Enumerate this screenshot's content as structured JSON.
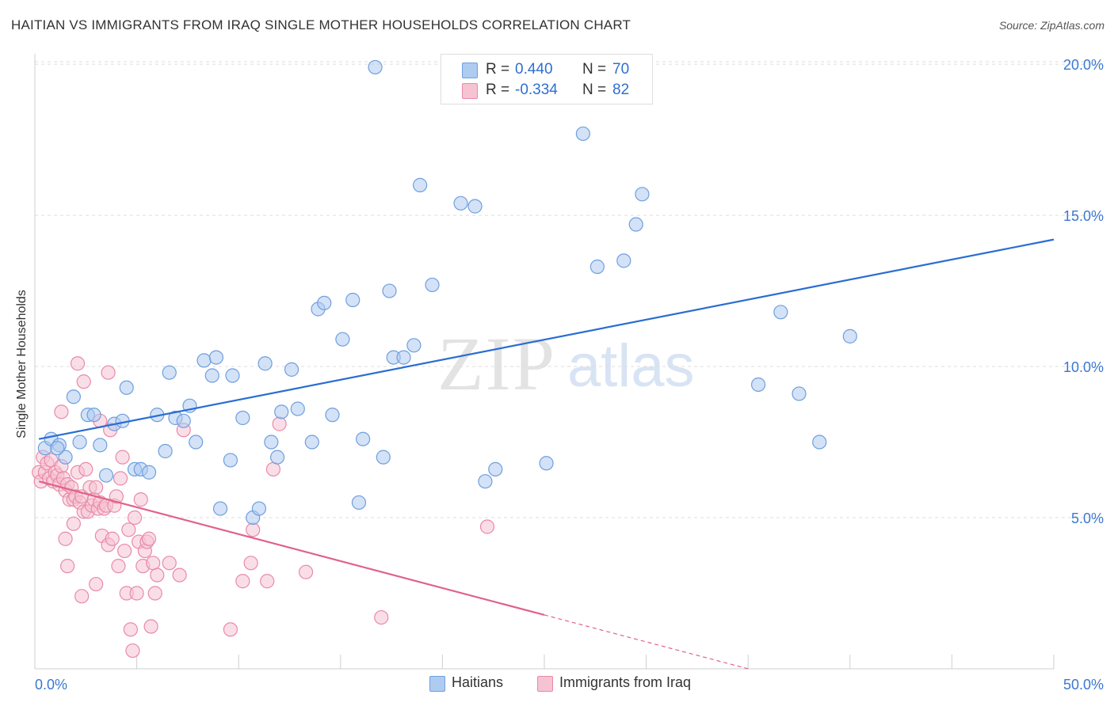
{
  "title": "HAITIAN VS IMMIGRANTS FROM IRAQ SINGLE MOTHER HOUSEHOLDS CORRELATION CHART",
  "source": "Source: ZipAtlas.com",
  "watermark": {
    "zip": "ZIP",
    "atlas": "atlas"
  },
  "colors": {
    "blue_fill": "#aecbf0",
    "blue_stroke": "#6f9fde",
    "blue_line": "#2a6dd2",
    "pink_fill": "#f6c3d3",
    "pink_stroke": "#e98aa8",
    "pink_line": "#e0628a",
    "axis_text": "#3a78d0",
    "grid": "#dcdcdc"
  },
  "legend": {
    "rows": [
      {
        "r_label": "R =",
        "r_value": "0.440",
        "n_label": "N =",
        "n_value": "70"
      },
      {
        "r_label": "R =",
        "r_value": "-0.334",
        "n_label": "N =",
        "n_value": "82"
      }
    ]
  },
  "chart_data": {
    "type": "scatter",
    "title": "HAITIAN VS IMMIGRANTS FROM IRAQ SINGLE MOTHER HOUSEHOLDS CORRELATION CHART",
    "xlabel": "",
    "ylabel": "Single Mother Households",
    "xlim": [
      0,
      50
    ],
    "ylim": [
      0,
      20.5
    ],
    "x_tick_labels": [
      "0.0%",
      "50.0%"
    ],
    "y_ticks": [
      5,
      10,
      15,
      20
    ],
    "y_tick_labels": [
      "5.0%",
      "10.0%",
      "15.0%",
      "20.0%"
    ],
    "grid": true,
    "legend_position": "bottom",
    "series": [
      {
        "name": "Haitians",
        "color": "#aecbf0",
        "trend": {
          "x": [
            0.2,
            50
          ],
          "y": [
            7.6,
            14.2
          ],
          "solid_to": 50
        },
        "points": [
          [
            0.5,
            7.3
          ],
          [
            0.8,
            7.6
          ],
          [
            1.2,
            7.4
          ],
          [
            1.5,
            7.0
          ],
          [
            1.9,
            9.0
          ],
          [
            2.2,
            7.5
          ],
          [
            2.6,
            8.4
          ],
          [
            2.9,
            8.4
          ],
          [
            3.2,
            7.4
          ],
          [
            3.5,
            6.4
          ],
          [
            3.9,
            8.1
          ],
          [
            4.3,
            8.2
          ],
          [
            4.5,
            9.3
          ],
          [
            4.9,
            6.6
          ],
          [
            5.2,
            6.6
          ],
          [
            5.6,
            6.5
          ],
          [
            6.0,
            8.4
          ],
          [
            6.4,
            7.2
          ],
          [
            6.6,
            9.8
          ],
          [
            6.9,
            8.3
          ],
          [
            7.3,
            8.2
          ],
          [
            7.6,
            8.7
          ],
          [
            7.9,
            7.5
          ],
          [
            8.3,
            10.2
          ],
          [
            8.7,
            9.7
          ],
          [
            8.9,
            10.3
          ],
          [
            9.1,
            5.3
          ],
          [
            9.6,
            6.9
          ],
          [
            9.7,
            9.7
          ],
          [
            10.2,
            8.3
          ],
          [
            10.7,
            5.0
          ],
          [
            11.0,
            5.3
          ],
          [
            11.3,
            10.1
          ],
          [
            11.6,
            7.5
          ],
          [
            11.9,
            7.0
          ],
          [
            12.1,
            8.5
          ],
          [
            12.6,
            9.9
          ],
          [
            12.9,
            8.6
          ],
          [
            13.6,
            7.5
          ],
          [
            13.9,
            11.9
          ],
          [
            14.2,
            12.1
          ],
          [
            14.6,
            8.4
          ],
          [
            15.1,
            10.9
          ],
          [
            15.6,
            12.2
          ],
          [
            15.9,
            5.5
          ],
          [
            16.1,
            7.6
          ],
          [
            16.7,
            19.9
          ],
          [
            17.1,
            7.0
          ],
          [
            17.4,
            12.5
          ],
          [
            17.6,
            10.3
          ],
          [
            18.1,
            10.3
          ],
          [
            18.6,
            10.7
          ],
          [
            18.9,
            16.0
          ],
          [
            19.5,
            12.7
          ],
          [
            20.9,
            15.4
          ],
          [
            21.6,
            15.3
          ],
          [
            22.1,
            6.2
          ],
          [
            22.6,
            6.6
          ],
          [
            25.1,
            6.8
          ],
          [
            26.9,
            17.7
          ],
          [
            27.6,
            13.3
          ],
          [
            28.9,
            13.5
          ],
          [
            29.5,
            14.7
          ],
          [
            29.8,
            15.7
          ],
          [
            35.5,
            9.4
          ],
          [
            36.6,
            11.8
          ],
          [
            37.5,
            9.1
          ],
          [
            38.5,
            7.5
          ],
          [
            40.0,
            11.0
          ],
          [
            1.1,
            7.3
          ]
        ]
      },
      {
        "name": "Immigrants from Iraq",
        "color": "#f6c3d3",
        "trend": {
          "x": [
            0.2,
            35
          ],
          "y": [
            6.2,
            0
          ],
          "solid_to": 25
        },
        "points": [
          [
            0.2,
            6.5
          ],
          [
            0.3,
            6.2
          ],
          [
            0.4,
            7.0
          ],
          [
            0.5,
            6.5
          ],
          [
            0.6,
            6.8
          ],
          [
            0.7,
            6.3
          ],
          [
            0.8,
            6.9
          ],
          [
            0.9,
            6.2
          ],
          [
            1.0,
            6.5
          ],
          [
            1.1,
            6.4
          ],
          [
            1.2,
            6.1
          ],
          [
            1.3,
            6.7
          ],
          [
            1.4,
            6.3
          ],
          [
            1.5,
            5.9
          ],
          [
            1.6,
            6.1
          ],
          [
            1.7,
            5.6
          ],
          [
            1.8,
            6.0
          ],
          [
            1.9,
            5.6
          ],
          [
            2.0,
            5.7
          ],
          [
            2.1,
            6.5
          ],
          [
            2.2,
            5.5
          ],
          [
            2.3,
            5.7
          ],
          [
            2.4,
            5.2
          ],
          [
            2.5,
            6.6
          ],
          [
            2.6,
            5.2
          ],
          [
            2.7,
            6.0
          ],
          [
            2.8,
            5.4
          ],
          [
            2.9,
            5.6
          ],
          [
            3.0,
            6.0
          ],
          [
            3.1,
            5.3
          ],
          [
            3.2,
            5.5
          ],
          [
            3.3,
            4.4
          ],
          [
            3.4,
            5.3
          ],
          [
            3.5,
            5.4
          ],
          [
            3.6,
            4.1
          ],
          [
            3.7,
            7.9
          ],
          [
            3.8,
            4.3
          ],
          [
            3.9,
            5.4
          ],
          [
            4.0,
            5.7
          ],
          [
            4.1,
            3.4
          ],
          [
            4.2,
            6.3
          ],
          [
            4.3,
            7.0
          ],
          [
            4.4,
            3.9
          ],
          [
            4.5,
            2.5
          ],
          [
            4.6,
            4.6
          ],
          [
            4.7,
            1.3
          ],
          [
            4.8,
            0.6
          ],
          [
            4.9,
            5.0
          ],
          [
            5.0,
            2.5
          ],
          [
            5.1,
            4.2
          ],
          [
            5.2,
            5.6
          ],
          [
            5.3,
            3.4
          ],
          [
            5.4,
            3.9
          ],
          [
            5.5,
            4.2
          ],
          [
            5.6,
            4.3
          ],
          [
            5.7,
            1.4
          ],
          [
            5.8,
            3.5
          ],
          [
            5.9,
            2.5
          ],
          [
            6.0,
            3.1
          ],
          [
            6.6,
            3.5
          ],
          [
            7.1,
            3.1
          ],
          [
            7.3,
            7.9
          ],
          [
            9.6,
            1.3
          ],
          [
            10.2,
            2.9
          ],
          [
            10.6,
            3.5
          ],
          [
            10.7,
            4.6
          ],
          [
            11.4,
            2.9
          ],
          [
            11.7,
            6.6
          ],
          [
            12.0,
            8.1
          ],
          [
            13.3,
            3.2
          ],
          [
            17.0,
            1.7
          ],
          [
            22.2,
            4.7
          ],
          [
            1.3,
            8.5
          ],
          [
            1.6,
            3.4
          ],
          [
            1.9,
            4.8
          ],
          [
            2.1,
            10.1
          ],
          [
            2.4,
            9.5
          ],
          [
            3.0,
            2.8
          ],
          [
            3.2,
            8.2
          ],
          [
            3.6,
            9.8
          ],
          [
            1.5,
            4.3
          ],
          [
            2.3,
            2.4
          ]
        ]
      }
    ]
  },
  "bottom_legend": [
    "Haitians",
    "Immigrants from Iraq"
  ]
}
